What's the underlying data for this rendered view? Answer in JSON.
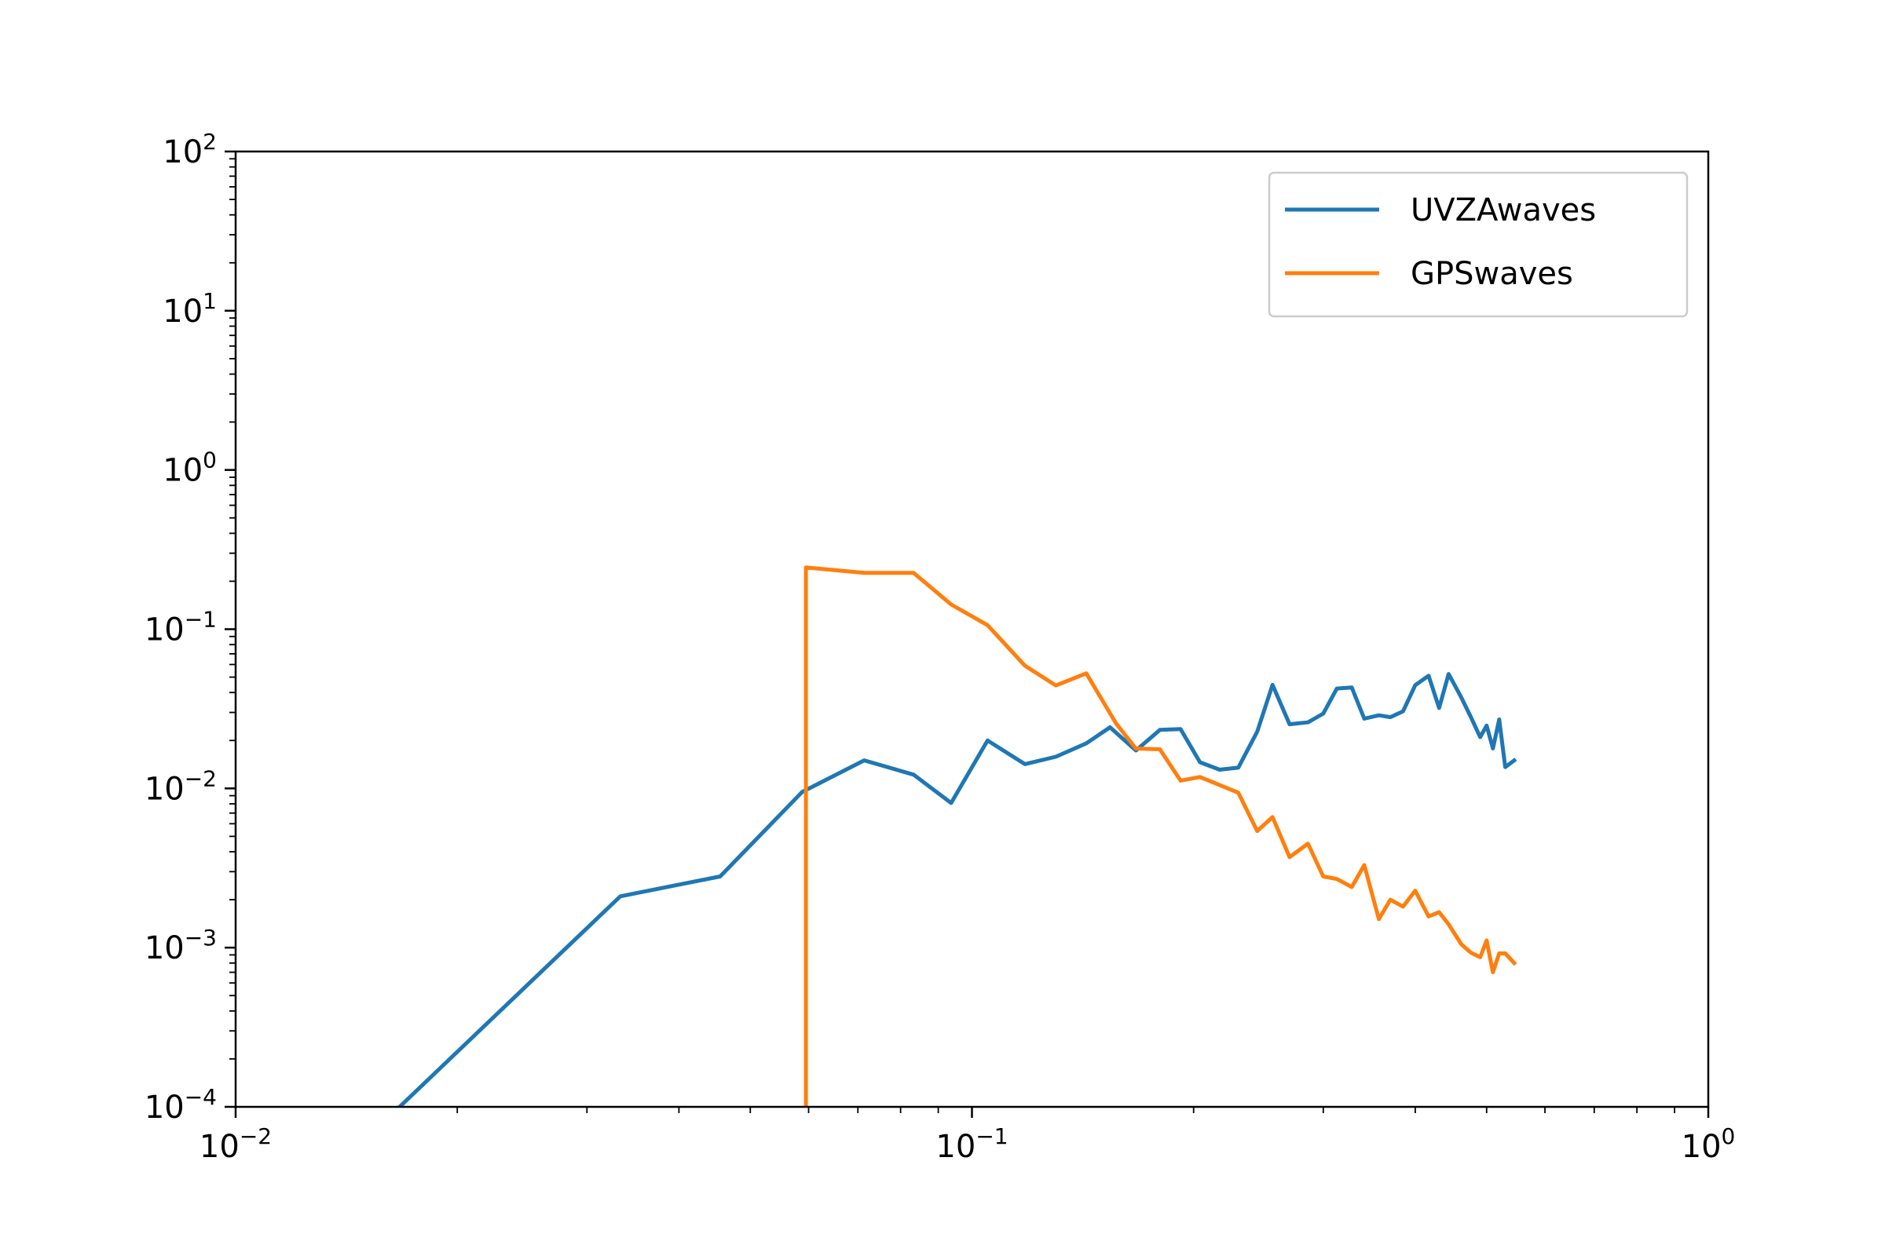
{
  "chart_data": {
    "type": "line",
    "title": "",
    "xlabel": "",
    "ylabel": "",
    "xscale": "log",
    "yscale": "log",
    "xlim": [
      0.01,
      1
    ],
    "ylim": [
      0.0001,
      100
    ],
    "grid": false,
    "legend_position": "top-right",
    "x_ticks": [
      {
        "base": "10",
        "exp": "−2",
        "value": 0.01
      },
      {
        "base": "10",
        "exp": "−1",
        "value": 0.1
      },
      {
        "base": "10",
        "exp": "0",
        "value": 1
      }
    ],
    "y_ticks": [
      {
        "base": "10",
        "exp": "−4",
        "value": 0.0001
      },
      {
        "base": "10",
        "exp": "−3",
        "value": 0.001
      },
      {
        "base": "10",
        "exp": "−2",
        "value": 0.01
      },
      {
        "base": "10",
        "exp": "−1",
        "value": 0.1
      },
      {
        "base": "10",
        "exp": "0",
        "value": 1
      },
      {
        "base": "10",
        "exp": "1",
        "value": 10
      },
      {
        "base": "10",
        "exp": "2",
        "value": 100
      }
    ],
    "series": [
      {
        "name": "UVZAwaves",
        "color": "#1f77b4",
        "points": [
          [
            0.0167,
            0.0001
          ],
          [
            0.0333,
            0.0021
          ],
          [
            0.0455,
            0.0028
          ],
          [
            0.0588,
            0.0095
          ],
          [
            0.0714,
            0.015
          ],
          [
            0.0833,
            0.0122
          ],
          [
            0.0937,
            0.0081
          ],
          [
            0.105,
            0.02
          ],
          [
            0.118,
            0.0142
          ],
          [
            0.13,
            0.0158
          ],
          [
            0.143,
            0.0192
          ],
          [
            0.154,
            0.0242
          ],
          [
            0.167,
            0.0173
          ],
          [
            0.18,
            0.0233
          ],
          [
            0.192,
            0.0236
          ],
          [
            0.204,
            0.0146
          ],
          [
            0.217,
            0.0131
          ],
          [
            0.23,
            0.0135
          ],
          [
            0.244,
            0.0227
          ],
          [
            0.256,
            0.0447
          ],
          [
            0.27,
            0.0253
          ],
          [
            0.286,
            0.026
          ],
          [
            0.3,
            0.0295
          ],
          [
            0.313,
            0.0424
          ],
          [
            0.328,
            0.043
          ],
          [
            0.341,
            0.0274
          ],
          [
            0.357,
            0.0288
          ],
          [
            0.37,
            0.028
          ],
          [
            0.385,
            0.0305
          ],
          [
            0.4,
            0.0445
          ],
          [
            0.417,
            0.051
          ],
          [
            0.431,
            0.032
          ],
          [
            0.444,
            0.0523
          ],
          [
            0.462,
            0.0372
          ],
          [
            0.476,
            0.028
          ],
          [
            0.49,
            0.021
          ],
          [
            0.5,
            0.0248
          ],
          [
            0.51,
            0.0178
          ],
          [
            0.52,
            0.0271
          ],
          [
            0.53,
            0.0136
          ],
          [
            0.545,
            0.015
          ]
        ]
      },
      {
        "name": "GPSwaves",
        "color": "#ff7f0e",
        "points": [
          [
            0.0595,
            0.0001
          ],
          [
            0.0595,
            0.244
          ],
          [
            0.0714,
            0.226
          ],
          [
            0.0833,
            0.226
          ],
          [
            0.0937,
            0.143
          ],
          [
            0.105,
            0.106
          ],
          [
            0.118,
            0.059
          ],
          [
            0.13,
            0.0443
          ],
          [
            0.143,
            0.0528
          ],
          [
            0.157,
            0.0255
          ],
          [
            0.167,
            0.0178
          ],
          [
            0.18,
            0.0176
          ],
          [
            0.192,
            0.0112
          ],
          [
            0.204,
            0.0118
          ],
          [
            0.23,
            0.0094
          ],
          [
            0.244,
            0.0054
          ],
          [
            0.256,
            0.0066
          ],
          [
            0.27,
            0.0037
          ],
          [
            0.286,
            0.0045
          ],
          [
            0.3,
            0.0028
          ],
          [
            0.313,
            0.0027
          ],
          [
            0.328,
            0.0024
          ],
          [
            0.341,
            0.0033
          ],
          [
            0.357,
            0.00151
          ],
          [
            0.37,
            0.002
          ],
          [
            0.385,
            0.00181
          ],
          [
            0.4,
            0.00228
          ],
          [
            0.417,
            0.00157
          ],
          [
            0.431,
            0.00167
          ],
          [
            0.444,
            0.0014
          ],
          [
            0.462,
            0.00105
          ],
          [
            0.476,
            0.00093
          ],
          [
            0.49,
            0.00087
          ],
          [
            0.5,
            0.00111
          ],
          [
            0.51,
            0.0007
          ],
          [
            0.52,
            0.00092
          ],
          [
            0.53,
            0.00092
          ],
          [
            0.545,
            0.0008
          ]
        ]
      }
    ]
  }
}
